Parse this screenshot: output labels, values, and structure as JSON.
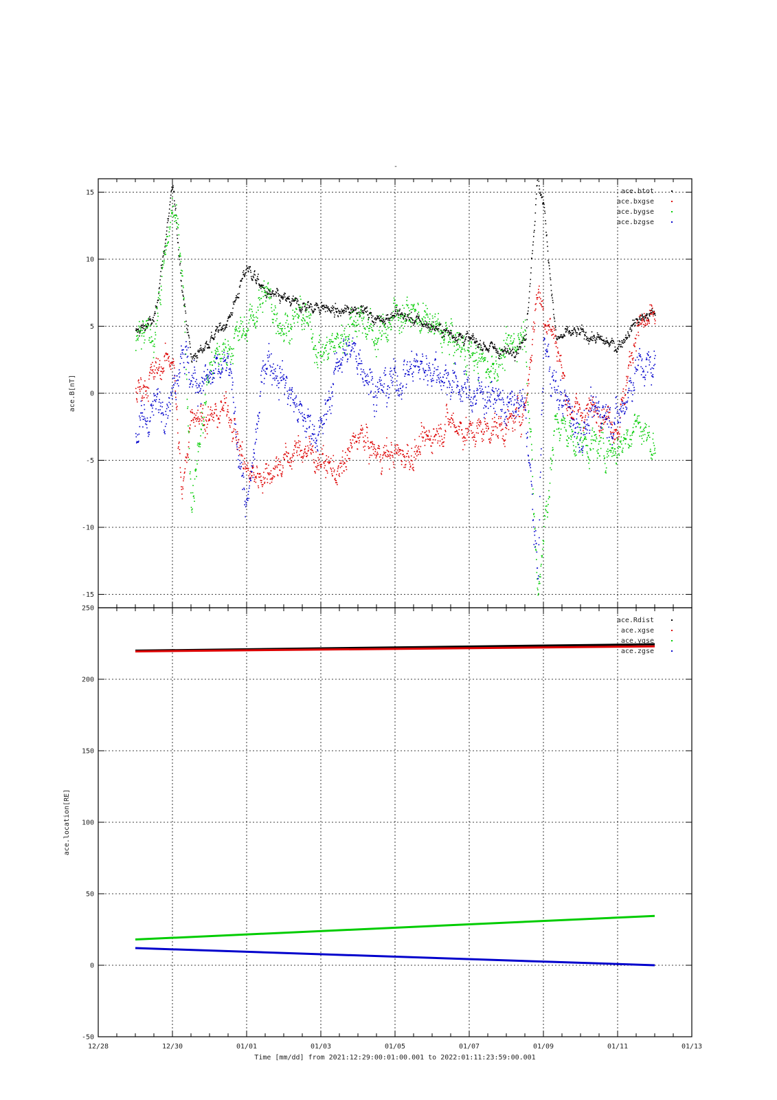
{
  "figure": {
    "top_mark": "-",
    "footer_label": "Time [mm/dd]  from 2021:12:29:00:01:00.001  to  2022:01:11:23:59:00.001"
  },
  "colors": {
    "black": "#000000",
    "red": "#dd0000",
    "green": "#00cc00",
    "blue": "#0000cc"
  },
  "chart_data": [
    {
      "type": "scatter",
      "ylabel": "ace.B[nT]",
      "xlabel": "",
      "x_ticks": [
        "12/28",
        "12/30",
        "01/01",
        "01/03",
        "01/05",
        "01/07",
        "01/09",
        "01/11",
        "01/13"
      ],
      "xlim": [
        "2021-12-28",
        "2022-01-13"
      ],
      "ylim": [
        -16,
        16
      ],
      "y_ticks": [
        15,
        10,
        5,
        0,
        -5,
        -10,
        -15
      ],
      "grid": true,
      "legend": "top-right",
      "series": [
        {
          "name": "ace.btot",
          "color": "#000000",
          "x": [
            "2021-12-29",
            "2021-12-29T12:00",
            "2021-12-30",
            "2021-12-30T06:00",
            "2021-12-30T12:00",
            "2021-12-31",
            "2021-12-31T12:00",
            "2022-01-01",
            "2022-01-01T12:00",
            "2022-01-02",
            "2022-01-02T12:00",
            "2022-01-03",
            "2022-01-03T12:00",
            "2022-01-04",
            "2022-01-04T12:00",
            "2022-01-05",
            "2022-01-05T12:00",
            "2022-01-06",
            "2022-01-06T12:00",
            "2022-01-07",
            "2022-01-07T12:00",
            "2022-01-08",
            "2022-01-08T12:00",
            "2022-01-08T20:00",
            "2022-01-09",
            "2022-01-09T08:00",
            "2022-01-09T16:00",
            "2022-01-10",
            "2022-01-10T12:00",
            "2022-01-11",
            "2022-01-11T12:00",
            "2022-01-12"
          ],
          "values": [
            4.5,
            5.5,
            15.5,
            8,
            2.5,
            4,
            5.5,
            9.5,
            7.5,
            7,
            6.5,
            6.5,
            6,
            6.5,
            5.5,
            6,
            5.5,
            5,
            4.5,
            4,
            3.5,
            3,
            4,
            16,
            14,
            4,
            4.5,
            4.5,
            4,
            3.5,
            5.5,
            6
          ]
        },
        {
          "name": "ace.bxgse",
          "color": "#dd0000",
          "x": [
            "2021-12-29",
            "2021-12-29T12:00",
            "2021-12-30",
            "2021-12-30T06:00",
            "2021-12-30T12:00",
            "2021-12-31",
            "2021-12-31T12:00",
            "2022-01-01",
            "2022-01-01T12:00",
            "2022-01-02",
            "2022-01-02T12:00",
            "2022-01-03",
            "2022-01-03T12:00",
            "2022-01-04",
            "2022-01-04T12:00",
            "2022-01-05",
            "2022-01-05T12:00",
            "2022-01-06",
            "2022-01-06T12:00",
            "2022-01-07",
            "2022-01-07T12:00",
            "2022-01-08",
            "2022-01-08T12:00",
            "2022-01-08T20:00",
            "2022-01-09",
            "2022-01-09T08:00",
            "2022-01-09T16:00",
            "2022-01-10",
            "2022-01-10T12:00",
            "2022-01-11",
            "2022-01-11T12:00",
            "2022-01-12"
          ],
          "values": [
            0,
            1.5,
            3,
            -8,
            -1,
            -2,
            -1,
            -6,
            -6,
            -5,
            -4,
            -5,
            -6,
            -3,
            -4.5,
            -4.5,
            -4.5,
            -3,
            -2,
            -3,
            -2.5,
            -2.5,
            -1,
            8,
            6,
            4,
            -1,
            -1.5,
            -1,
            -2.5,
            5,
            5.5
          ]
        },
        {
          "name": "ace.bygse",
          "color": "#00cc00",
          "x": [
            "2021-12-29",
            "2021-12-29T12:00",
            "2021-12-30",
            "2021-12-30T06:00",
            "2021-12-30T12:00",
            "2021-12-31",
            "2021-12-31T12:00",
            "2022-01-01",
            "2022-01-01T12:00",
            "2022-01-02",
            "2022-01-02T12:00",
            "2022-01-03",
            "2022-01-03T12:00",
            "2022-01-04",
            "2022-01-04T12:00",
            "2022-01-05",
            "2022-01-05T12:00",
            "2022-01-06",
            "2022-01-06T12:00",
            "2022-01-07",
            "2022-01-07T12:00",
            "2022-01-08",
            "2022-01-08T12:00",
            "2022-01-08T20:00",
            "2022-01-09",
            "2022-01-09T08:00",
            "2022-01-09T16:00",
            "2022-01-10",
            "2022-01-10T12:00",
            "2022-01-11",
            "2022-01-11T12:00",
            "2022-01-12"
          ],
          "values": [
            4,
            4.5,
            14,
            10,
            -8,
            2,
            3.5,
            5,
            7.5,
            5,
            6,
            3,
            4,
            6,
            4,
            6,
            6,
            5,
            4,
            3,
            2,
            3,
            5,
            -15,
            -10,
            -2,
            -3,
            -3.5,
            -4,
            -4,
            -2,
            -4
          ]
        },
        {
          "name": "ace.bzgse",
          "color": "#0000cc",
          "x": [
            "2021-12-29",
            "2021-12-29T12:00",
            "2021-12-30",
            "2021-12-30T06:00",
            "2021-12-30T12:00",
            "2021-12-31",
            "2021-12-31T12:00",
            "2022-01-01",
            "2022-01-01T12:00",
            "2022-01-02",
            "2022-01-02T12:00",
            "2022-01-03",
            "2022-01-03T12:00",
            "2022-01-04",
            "2022-01-04T12:00",
            "2022-01-05",
            "2022-01-05T12:00",
            "2022-01-06",
            "2022-01-06T12:00",
            "2022-01-07",
            "2022-01-07T12:00",
            "2022-01-08",
            "2022-01-08T12:00",
            "2022-01-08T20:00",
            "2022-01-09",
            "2022-01-09T08:00",
            "2022-01-09T16:00",
            "2022-01-10",
            "2022-01-10T12:00",
            "2022-01-11",
            "2022-01-11T12:00",
            "2022-01-12"
          ],
          "values": [
            -3,
            -1,
            0,
            4,
            1,
            1,
            2,
            -9,
            3,
            1,
            -2,
            -3,
            3,
            3,
            0,
            1,
            2,
            2,
            1,
            0,
            0,
            -1,
            -1,
            -14,
            4,
            0,
            -1,
            -3,
            -1,
            -2,
            2,
            2
          ]
        }
      ]
    },
    {
      "type": "line",
      "ylabel": "ace.location[RE]",
      "xlabel": "Time [mm/dd]",
      "x_ticks": [
        "12/28",
        "12/30",
        "01/01",
        "01/03",
        "01/05",
        "01/07",
        "01/09",
        "01/11",
        "01/13"
      ],
      "xlim": [
        "2021-12-28",
        "2022-01-13"
      ],
      "ylim": [
        -50,
        250
      ],
      "y_ticks": [
        250,
        200,
        150,
        100,
        50,
        0,
        -50
      ],
      "grid": true,
      "legend": "top-right",
      "series": [
        {
          "name": "ace.Rdist",
          "color": "#000000",
          "x": [
            "2021-12-29",
            "2022-01-12"
          ],
          "values": [
            220,
            224.5
          ]
        },
        {
          "name": "ace.xgse",
          "color": "#dd0000",
          "x": [
            "2021-12-29",
            "2022-01-12"
          ],
          "values": [
            219.5,
            223
          ]
        },
        {
          "name": "ace.ygse",
          "color": "#00cc00",
          "x": [
            "2021-12-29",
            "2022-01-12"
          ],
          "values": [
            18,
            34.5
          ]
        },
        {
          "name": "ace.zgse",
          "color": "#0000cc",
          "x": [
            "2021-12-29",
            "2022-01-12"
          ],
          "values": [
            12,
            0
          ]
        }
      ]
    }
  ]
}
